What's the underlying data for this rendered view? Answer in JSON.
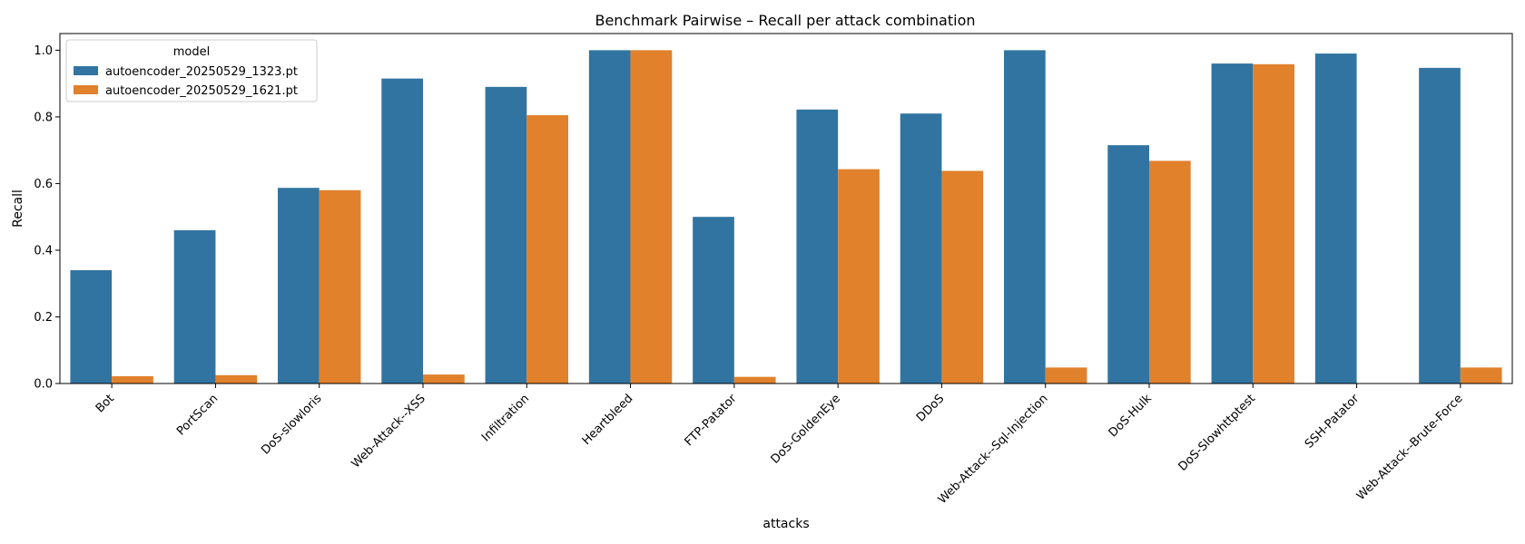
{
  "chart_data": {
    "type": "bar",
    "title": "Benchmark Pairwise – Recall per attack combination",
    "xlabel": "attacks",
    "ylabel": "Recall",
    "ylim": [
      0,
      1.05
    ],
    "yticks": [
      "0.0",
      "0.2",
      "0.4",
      "0.6",
      "0.8",
      "1.0"
    ],
    "legend": {
      "title": "model",
      "placement": "upper-left"
    },
    "categories": [
      "Bot",
      "PortScan",
      "DoS-slowloris",
      "Web-Attack--XSS",
      "Infiltration",
      "Heartbleed",
      "FTP-Patator",
      "DoS-GoldenEye",
      "DDoS",
      "Web-Attack--Sql-Injection",
      "DoS-Hulk",
      "DoS-Slowhttptest",
      "SSH-Patator",
      "Web-Attack--Brute-Force"
    ],
    "series": [
      {
        "name": "autoencoder_20250529_1323.pt",
        "color": "#3274a1",
        "values": [
          0.34,
          0.46,
          0.587,
          0.915,
          0.89,
          1.0,
          0.5,
          0.822,
          0.81,
          1.0,
          0.715,
          0.96,
          0.99,
          0.947
        ]
      },
      {
        "name": "autoencoder_20250529_1621.pt",
        "color": "#e1812c",
        "values": [
          0.022,
          0.025,
          0.58,
          0.027,
          0.805,
          1.0,
          0.02,
          0.643,
          0.638,
          0.048,
          0.668,
          0.958,
          0.0,
          0.048
        ]
      }
    ]
  }
}
